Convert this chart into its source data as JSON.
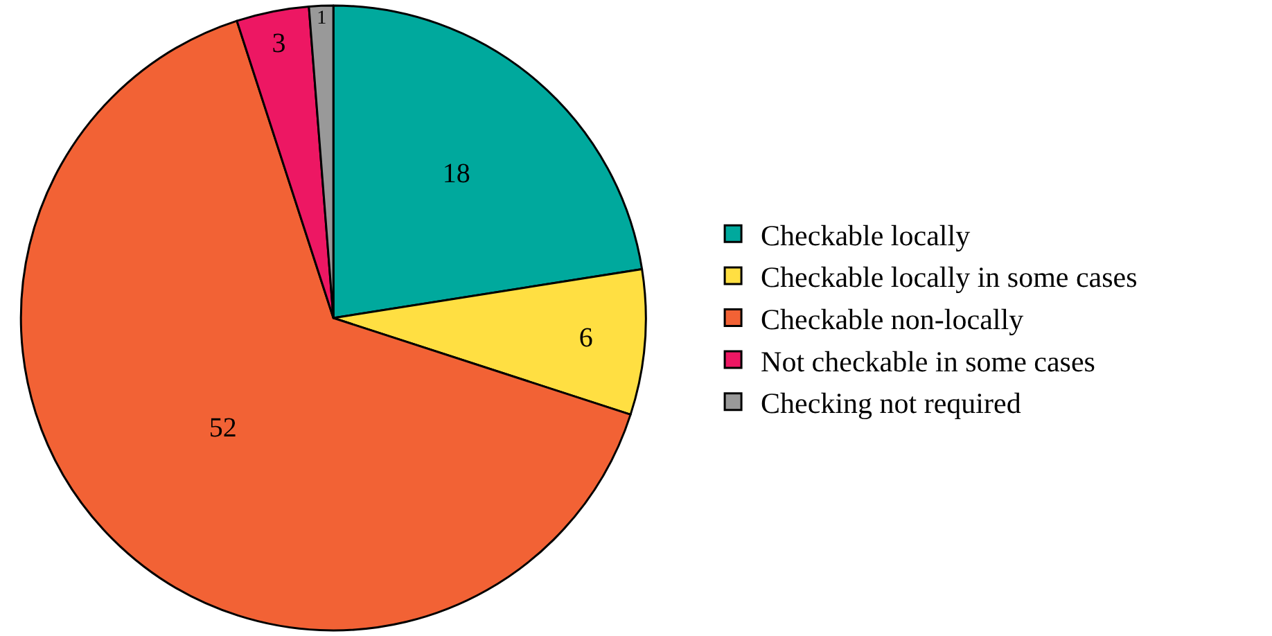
{
  "chart_data": {
    "type": "pie",
    "categories": [
      "Checkable locally",
      "Checkable locally in some cases",
      "Checkable non-locally",
      "Not checkable in some cases",
      "Checking not required"
    ],
    "values": [
      18,
      6,
      52,
      3,
      1
    ],
    "colors": [
      "#00a99d",
      "#ffdf42",
      "#f26235",
      "#ed1763",
      "#999999"
    ],
    "data_labels": true,
    "legend": "right"
  }
}
